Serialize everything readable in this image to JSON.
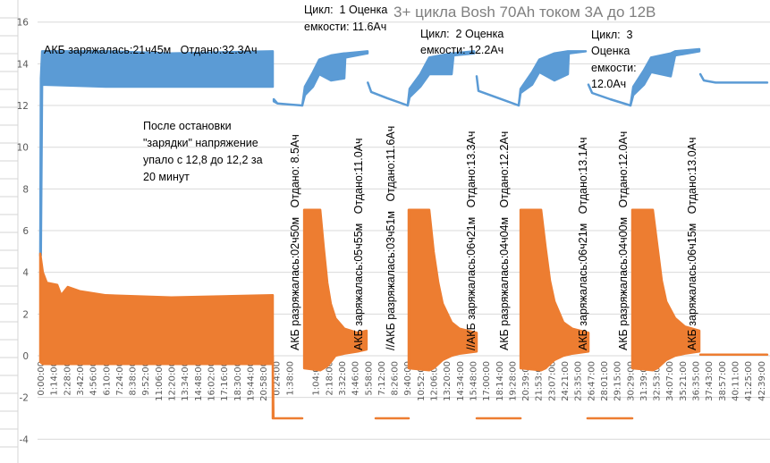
{
  "chart_data": {
    "type": "line",
    "title": "3+ цикла Bosh 70Ah током  3А до 12В",
    "xlabel": "",
    "ylabel": "",
    "ylim": [
      -4,
      16
    ],
    "yticks": [
      -4,
      -2,
      0,
      2,
      4,
      6,
      8,
      10,
      12,
      14,
      16
    ],
    "xlim": [
      -0.5,
      55.6
    ],
    "x_unit": "category position",
    "grid": "horizontal",
    "legend": "none",
    "categories": [
      "0:00:00",
      "1:14:00",
      "2:28:00",
      "3:42:00",
      "4:56:00",
      "6:10:00",
      "7:24:00",
      "8:38:00",
      "9:52:00",
      "11:06:00",
      "12:20:00",
      "13:34:00",
      "14:48:00",
      "16:02:00",
      "17:16:00",
      "18:30:00",
      "19:44:00",
      "20:58:00",
      "0:24:00",
      "1:38:00",
      null,
      "1:04:00",
      "2:18:00",
      "3:32:00",
      "4:46:00",
      "5:58:00",
      "7:12:00",
      "8:26:00",
      "9:40:00",
      "10:52:00",
      "12:06:00",
      "13:20:00",
      "14:34:00",
      "15:48:00",
      "17:00:00",
      "18:14:00",
      "19:28:00",
      "20:39:00",
      "21:53:00",
      "23:07:00",
      "24:21:00",
      "25:35:00",
      "26:47:00",
      "28:01:00",
      "29:15:00",
      "30:29:00",
      "31:39:00",
      "32:53:00",
      "34:07:00",
      "35:21:00",
      "36:35:00",
      "37:43:00",
      "38:57:00",
      "40:11:00",
      "41:25:00",
      "42:39:00"
    ],
    "series": [
      {
        "color": "#5B9BD5",
        "format": "segments of [x, min, max] envelope",
        "segments": [
          [
            [
              0,
              4.8,
              4.8
            ],
            [
              0.05,
              4.8,
              13.3
            ],
            [
              0.14,
              13.0,
              14.6
            ],
            [
              5,
              12.9,
              14.6
            ],
            [
              10,
              12.9,
              14.5
            ],
            [
              17.75,
              12.9,
              14.6
            ]
          ],
          [
            [
              17.82,
              12.2,
              12.3
            ],
            [
              18.1,
              12.1,
              12.1
            ],
            [
              19,
              12.05,
              12.05
            ],
            [
              20,
              12.0,
              12.0
            ]
          ],
          [
            [
              20.0,
              12.0,
              12.0
            ],
            [
              20.2,
              12.5,
              12.9
            ],
            [
              20.82,
              12.9,
              13.6
            ],
            [
              21.3,
              13.5,
              14.2
            ],
            [
              22.2,
              13.2,
              14.4
            ],
            [
              23.21,
              13.3,
              14.5
            ],
            [
              23.28,
              14.3,
              14.5
            ],
            [
              24.98,
              14.5,
              14.6
            ]
          ],
          [
            [
              25.0,
              13.1,
              13.1
            ],
            [
              25.26,
              12.65,
              12.65
            ],
            [
              26.5,
              12.35,
              12.35
            ],
            [
              28.05,
              12.0,
              12.0
            ]
          ],
          [
            [
              28.05,
              12.0,
              12.0
            ],
            [
              28.19,
              12.4,
              12.8
            ],
            [
              29.01,
              12.9,
              13.5
            ],
            [
              29.69,
              13.5,
              14.3
            ],
            [
              31.4,
              13.5,
              14.5
            ],
            [
              31.54,
              14.4,
              14.5
            ],
            [
              33.11,
              14.5,
              14.6
            ]
          ],
          [
            [
              33.31,
              13.4,
              13.4
            ],
            [
              33.45,
              12.7,
              12.7
            ],
            [
              35,
              12.35,
              12.35
            ],
            [
              36.52,
              12.0,
              12.0
            ]
          ],
          [
            [
              36.52,
              12.0,
              12.0
            ],
            [
              36.66,
              12.6,
              12.8
            ],
            [
              37.54,
              13.0,
              13.6
            ],
            [
              38.09,
              13.6,
              14.2
            ],
            [
              39.25,
              13.2,
              14.5
            ],
            [
              40.27,
              13.5,
              14.6
            ],
            [
              40.34,
              14.5,
              14.6
            ],
            [
              41.64,
              14.6,
              14.6
            ]
          ],
          [
            [
              41.84,
              13.0,
              13.0
            ],
            [
              42.12,
              12.6,
              12.6
            ],
            [
              43.5,
              12.3,
              12.3
            ],
            [
              45.05,
              12.0,
              12.0
            ]
          ],
          [
            [
              45.05,
              12.0,
              12.0
            ],
            [
              45.26,
              12.5,
              12.9
            ],
            [
              46.08,
              13.0,
              13.7
            ],
            [
              46.62,
              13.6,
              14.3
            ],
            [
              48.12,
              13.4,
              14.5
            ],
            [
              48.46,
              14.4,
              14.6
            ],
            [
              50.31,
              14.6,
              14.7
            ]
          ],
          [
            [
              50.38,
              13.5,
              13.5
            ],
            [
              50.65,
              13.2,
              13.2
            ],
            [
              51.54,
              13.1,
              13.1
            ],
            [
              55.49,
              13.1,
              13.1
            ]
          ]
        ]
      },
      {
        "color": "#ED7D31",
        "format": "segments of [x, min, max] envelope",
        "segments": [
          [
            [
              0,
              -0.3,
              4.9
            ],
            [
              0.2,
              -0.4,
              4.0
            ],
            [
              0.5,
              -0.4,
              3.5
            ],
            [
              1.3,
              -0.4,
              3.4
            ],
            [
              1.6,
              -0.4,
              2.9
            ],
            [
              2.1,
              -0.4,
              3.3
            ],
            [
              3,
              -0.4,
              3.1
            ],
            [
              5,
              -0.4,
              2.9
            ],
            [
              10,
              -0.4,
              2.8
            ],
            [
              17.75,
              -0.4,
              2.9
            ]
          ],
          [
            [
              17.75,
              -3,
              0
            ],
            [
              17.8,
              -3,
              -3
            ],
            [
              20.0,
              -3,
              -3
            ]
          ],
          [
            [
              20.14,
              -0.6,
              7.0
            ],
            [
              21.37,
              -0.7,
              7.0
            ],
            [
              21.64,
              -0.6,
              5.2
            ],
            [
              21.91,
              -0.5,
              3.5
            ],
            [
              22.18,
              -0.3,
              2.5
            ],
            [
              22.53,
              0,
              1.8
            ],
            [
              23.21,
              0.1,
              1.3
            ],
            [
              24.23,
              0.2,
              1.1
            ],
            [
              24.91,
              0.3,
              1.2
            ]
          ],
          [
            [
              25.6,
              -3,
              -3
            ],
            [
              28.12,
              -3,
              -3
            ]
          ],
          [
            [
              28.12,
              -0.6,
              7.0
            ],
            [
              29.69,
              -0.7,
              7.0
            ],
            [
              30.03,
              -0.6,
              5.0
            ],
            [
              30.38,
              -0.4,
              3.5
            ],
            [
              30.72,
              -0.2,
              2.5
            ],
            [
              31.4,
              0,
              1.6
            ],
            [
              32.0,
              0.1,
              1.3
            ],
            [
              33.31,
              0.2,
              1.1
            ]
          ],
          [
            [
              33.31,
              -3,
              -3
            ],
            [
              36.66,
              -3,
              -3
            ]
          ],
          [
            [
              36.66,
              -0.6,
              7.0
            ],
            [
              38.23,
              -0.7,
              7.0
            ],
            [
              38.57,
              -0.6,
              5.2
            ],
            [
              38.91,
              -0.4,
              3.6
            ],
            [
              39.25,
              -0.2,
              2.6
            ],
            [
              39.93,
              0,
              1.6
            ],
            [
              40.6,
              0.1,
              1.3
            ],
            [
              41.84,
              0.2,
              1.1
            ]
          ],
          [
            [
              41.77,
              -3,
              -3
            ],
            [
              45.19,
              -3,
              -3
            ]
          ],
          [
            [
              45.19,
              -0.6,
              7.0
            ],
            [
              46.76,
              -0.7,
              7.0
            ],
            [
              47.1,
              -0.6,
              5.3
            ],
            [
              47.44,
              -0.4,
              3.6
            ],
            [
              47.78,
              -0.2,
              2.6
            ],
            [
              48.46,
              0,
              1.8
            ],
            [
              49.2,
              0.1,
              1.4
            ],
            [
              50.31,
              0.2,
              1.2
            ]
          ],
          [
            [
              50.38,
              0.05,
              0.05
            ],
            [
              55.49,
              0.05,
              0.05
            ]
          ]
        ]
      }
    ],
    "annotations": {
      "initial_charge": "АКБ заряжалась:21ч45м   Отдано:32.3Ач",
      "note_lines": [
        "После остановки",
        "\"зарядки\" напряжение",
        "упало с 12,8 до 12,2 за",
        "20 минут"
      ],
      "cycle1": [
        "Цикл:  1 Оценка",
        "емкости: 11.6Ач"
      ],
      "cycle2": [
        "Цикл:  2 Оценка",
        "емкости: 12.2Ач"
      ],
      "cycle3": [
        "Цикл:  3",
        "Оценка",
        "емкости:",
        "12.0Ач"
      ],
      "vertical": [
        "АКБ разряжалась:02ч50м   Отдано: 8.5Ач",
        "АКБ заряжалась:05ч55м   Отдано:11.0Ач",
        "//АКБ разряжалась:03ч51м   Отдано:11.6Ач",
        "//АКБ заряжалась:06ч21м   Отдано:13.3Ач",
        "АКБ разряжалась:04ч04м   Отдано:12.2Ач",
        "АКБ заряжалась:06ч21м   Отдано:13.1Ач",
        "АКБ разряжалась:04ч00м   Отдано:12.0Ач",
        "АКБ заряжалась:06ч15м   Отдано:13.0Ач"
      ]
    }
  }
}
